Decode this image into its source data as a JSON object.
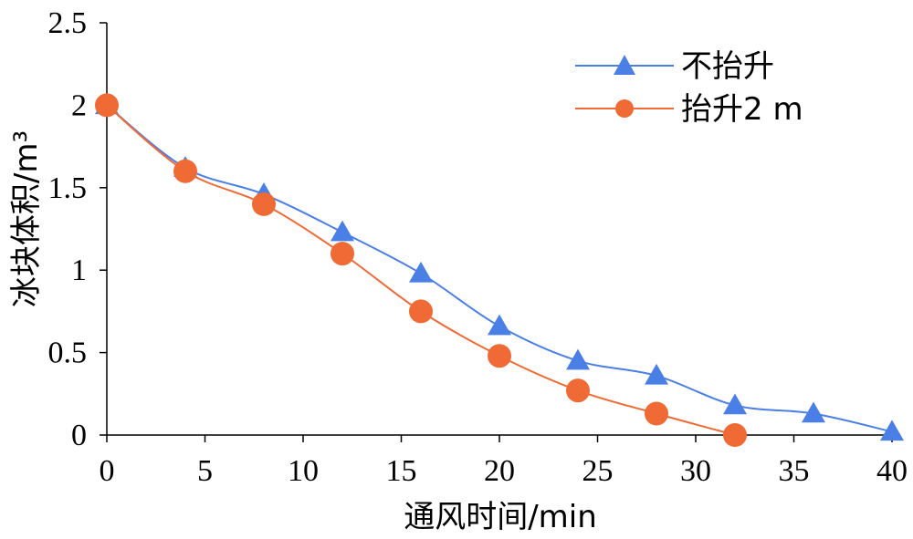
{
  "chart_data": {
    "type": "line",
    "title": "",
    "xlabel": "通风时间/min",
    "ylabel": "冰块体积/m³",
    "xlim": [
      0,
      40
    ],
    "ylim": [
      0,
      2.5
    ],
    "x_ticks": [
      "0",
      "5",
      "10",
      "15",
      "20",
      "25",
      "30",
      "35",
      "40"
    ],
    "y_ticks": [
      "0",
      "0.5",
      "1",
      "1.5",
      "2",
      "2.5"
    ],
    "grid": false,
    "legend_position": "top-right",
    "series": [
      {
        "name": "不抬升",
        "marker": "triangle",
        "color": "#4a7fe6",
        "x": [
          0,
          4,
          8,
          12,
          16,
          20,
          24,
          28,
          32,
          36,
          40
        ],
        "y": [
          2.0,
          1.62,
          1.46,
          1.23,
          0.98,
          0.66,
          0.45,
          0.36,
          0.18,
          0.13,
          0.02
        ]
      },
      {
        "name": "抬升2 m",
        "marker": "circle",
        "color": "#ef6a35",
        "x": [
          0,
          4,
          8,
          12,
          16,
          20,
          24,
          28,
          32
        ],
        "y": [
          2.0,
          1.6,
          1.4,
          1.1,
          0.75,
          0.48,
          0.27,
          0.13,
          0.0
        ]
      }
    ]
  }
}
